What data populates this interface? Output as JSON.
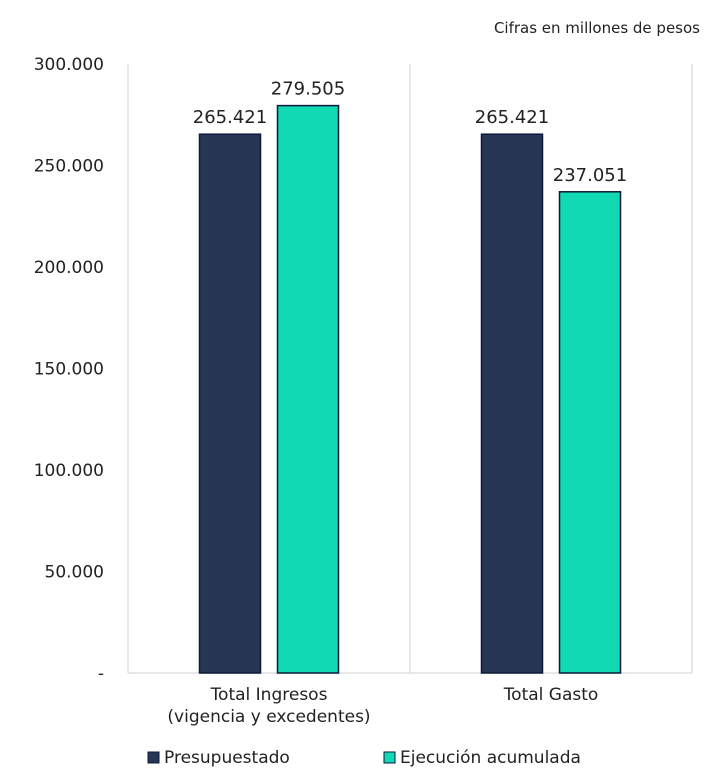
{
  "note": "Cifras en millones de pesos",
  "chart_data": {
    "type": "bar",
    "categories": [
      [
        "Total Ingresos",
        "(vigencia y excedentes)"
      ],
      [
        "Total Gasto"
      ]
    ],
    "series": [
      {
        "name": "Presupuestado",
        "values": [
          265421,
          265421
        ],
        "labels": [
          "265.421",
          "265.421"
        ],
        "color": "#283655"
      },
      {
        "name": "Ejecución acumulada",
        "values": [
          279505,
          237051
        ],
        "labels": [
          "279.505",
          "237.051"
        ],
        "color": "#10d9b4"
      }
    ],
    "yticks": [
      0,
      50000,
      100000,
      150000,
      200000,
      250000,
      300000
    ],
    "ytick_labels": [
      "-",
      "50.000",
      "100.000",
      "150.000",
      "200.000",
      "250.000",
      "300.000"
    ],
    "ylim": [
      0,
      300000
    ],
    "grid": false,
    "legend_position": "bottom",
    "colors": {
      "bar_outline": "#0b1a3a",
      "axis": "#d0d0d0"
    }
  }
}
